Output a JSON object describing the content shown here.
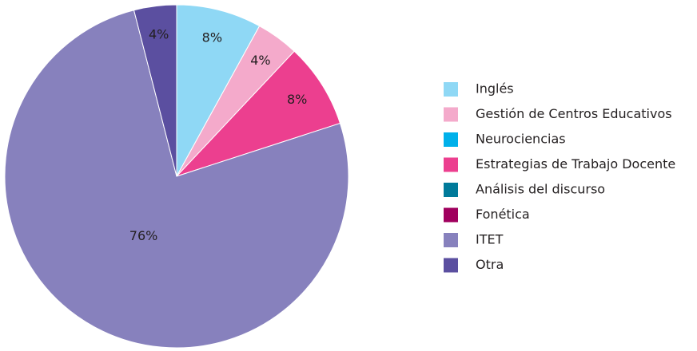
{
  "chart_data": {
    "type": "pie",
    "categories": [
      "Inglés",
      "Gestión de Centros Educativos",
      "Neurociencias",
      "Estrategias de Trabajo Docente",
      "Análisis del discurso",
      "Fonética",
      "ITET",
      "Otra"
    ],
    "values": [
      8,
      4,
      0,
      8,
      0,
      0,
      76,
      4
    ],
    "value_labels": [
      "8%",
      "4%",
      null,
      "8%",
      null,
      null,
      "76%",
      "4%"
    ],
    "colors": [
      "#8fd8f5",
      "#f4aacb",
      "#00b0ea",
      "#ec3f8f",
      "#007a9a",
      "#a0005e",
      "#8781bd",
      "#5b4fa0"
    ],
    "legend": "right"
  }
}
